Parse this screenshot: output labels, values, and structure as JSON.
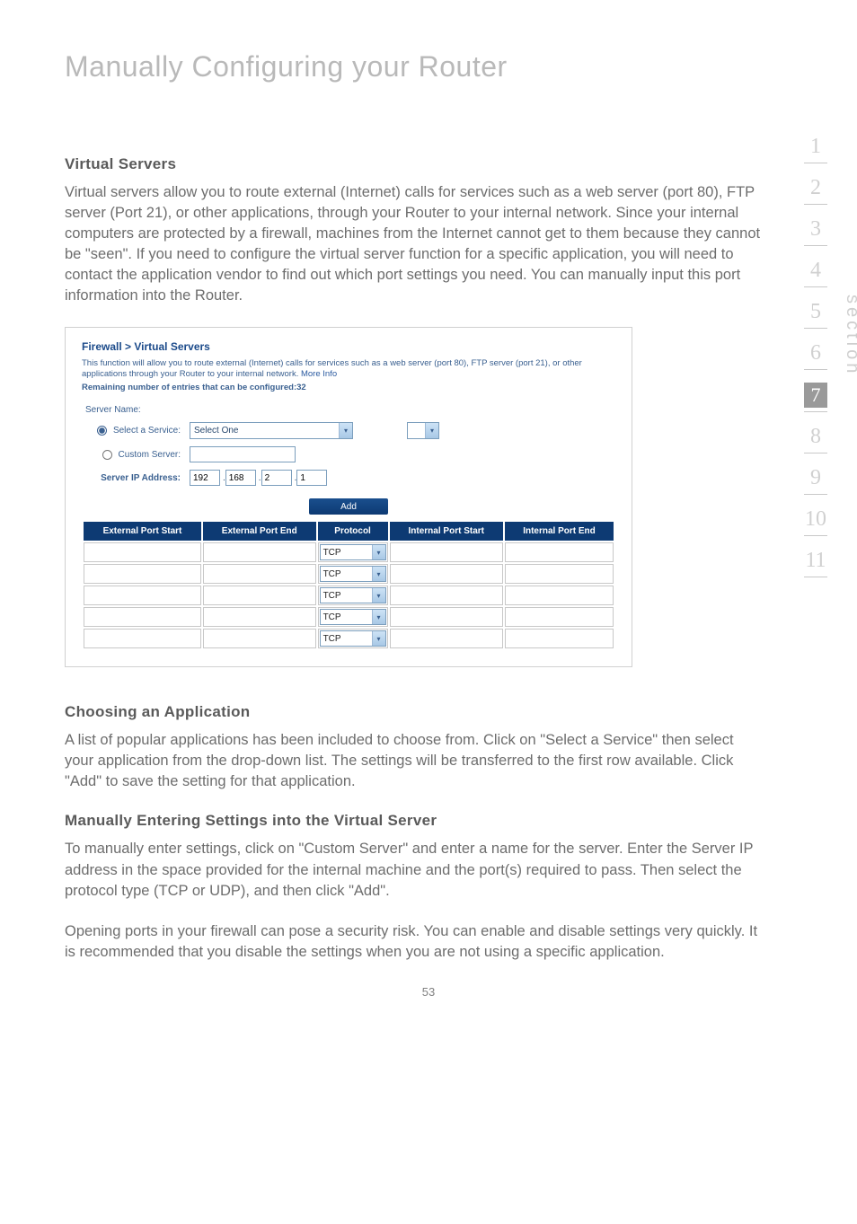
{
  "chapter": {
    "title": "Manually Configuring your Router"
  },
  "sections": {
    "virtual_servers": {
      "heading": "Virtual Servers",
      "body": "Virtual servers allow you to route external (Internet) calls for services such as a web server (port 80), FTP server (Port 21), or other applications, through your Router to your internal network. Since your internal computers are protected by a firewall, machines from the Internet cannot get to them because they cannot be \"seen\". If you need to configure the virtual server function for a specific application, you will need to contact the application vendor to find out which port settings you need. You can manually input this port information into the Router."
    },
    "choosing": {
      "heading": "Choosing an Application",
      "body": "A list of popular applications has been included to choose from. Click on \"Select a Service\" then select your application from the drop-down list. The settings will be transferred to the first row available. Click \"Add\" to save the setting for that application."
    },
    "manual": {
      "heading": "Manually Entering Settings into the Virtual Server",
      "body1": "To manually enter settings, click on \"Custom Server\" and enter a name for the server. Enter the Server IP address in the space provided for the internal machine and the port(s) required to pass. Then select the protocol type (TCP or UDP), and then click \"Add\".",
      "body2": "Opening ports in your firewall can pose a security risk. You can enable and disable settings very quickly. It is recommended that you disable the settings when you are not using a specific application."
    }
  },
  "screenshot": {
    "breadcrumb": "Firewall > Virtual Servers",
    "description": "This function will allow you to route external (Internet) calls for services such as a web server (port 80), FTP server (port 21), or other applications through your Router to your internal network.",
    "more_info": "More Info",
    "remaining": "Remaining number of entries that can be configured:32",
    "labels": {
      "server_name": "Server Name:",
      "select_service": "Select a Service:",
      "custom_server": "Custom Server:",
      "server_ip": "Server IP Address:"
    },
    "service_value": "Select One",
    "ip": {
      "a": "192",
      "b": "168",
      "c": "2",
      "d": "1"
    },
    "add_button": "Add",
    "table": {
      "columns": [
        "External Port Start",
        "External Port End",
        "Protocol",
        "Internal Port Start",
        "Internal Port End"
      ],
      "protocol_value": "TCP",
      "row_count": 5,
      "header_bg": "#0d3a73",
      "header_color": "#ffffff"
    }
  },
  "sidebar": {
    "items": [
      "1",
      "2",
      "3",
      "4",
      "5",
      "6",
      "7",
      "8",
      "9",
      "10",
      "11"
    ],
    "active_index": 6,
    "label": "section"
  },
  "page_number": "53",
  "colors": {
    "title_gray": "#b9b9b9",
    "text_gray": "#6d6d6d",
    "heading_gray": "#5a5a5a",
    "link_blue": "#2a5aa0",
    "panel_blue": "#3a6090",
    "table_header": "#0d3a73",
    "sidebar_gray": "#d0d0d0",
    "sidebar_active_bg": "#9a9a9a"
  }
}
